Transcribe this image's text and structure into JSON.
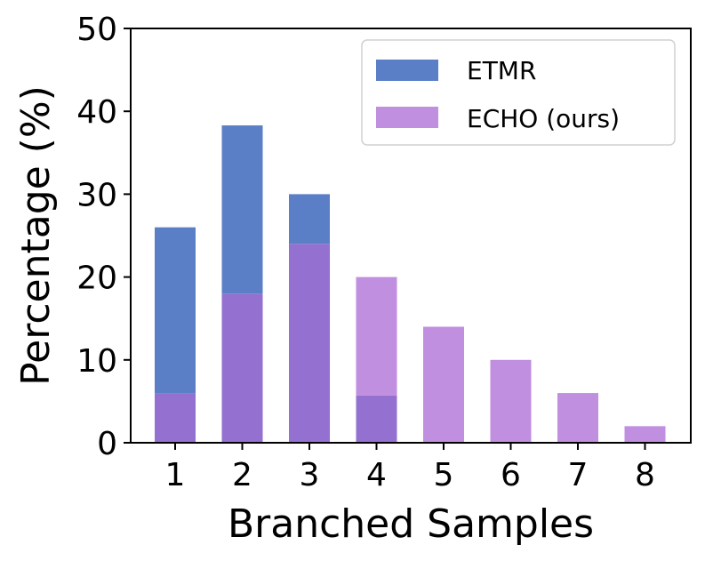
{
  "chart_data": {
    "type": "bar",
    "xlabel": "Branched Samples",
    "ylabel": "Percentage (%)",
    "ylim": [
      0,
      50
    ],
    "yticks": [
      0,
      10,
      20,
      30,
      40,
      50
    ],
    "categories": [
      "1",
      "2",
      "3",
      "4",
      "5",
      "6",
      "7",
      "8"
    ],
    "grid": false,
    "legend_position": "top-right",
    "series": [
      {
        "name": "ETMR",
        "color": "#5b7fc7",
        "values": [
          26,
          38.3,
          30,
          5.7,
          0,
          0,
          0,
          0
        ]
      },
      {
        "name": "ECHO (ours)",
        "color": "#c08fe0",
        "values": [
          6,
          18,
          24,
          20,
          14,
          10,
          6,
          2
        ]
      }
    ],
    "overlap_color": "#9471d0"
  }
}
